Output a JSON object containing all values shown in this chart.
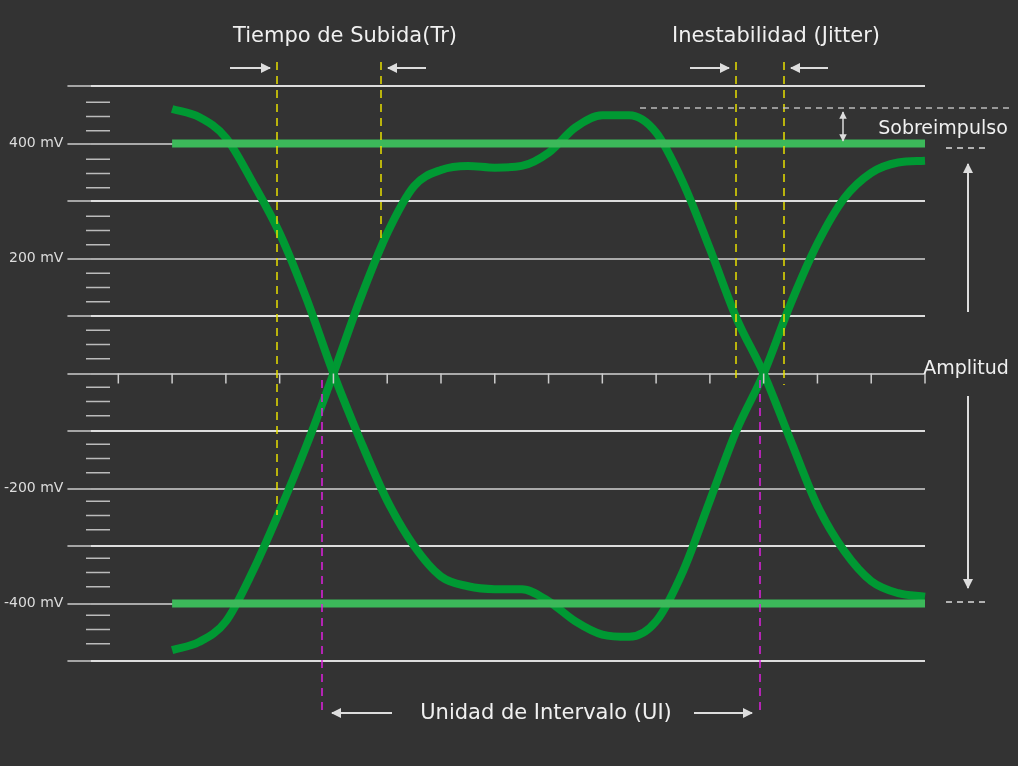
{
  "chart_data": {
    "type": "line",
    "categories": [
      null,
      null,
      null,
      null,
      null,
      null,
      null,
      null,
      null,
      null,
      null,
      null,
      null,
      null,
      null,
      null,
      null,
      null,
      null,
      null,
      null,
      null,
      null,
      null,
      null,
      null,
      null,
      null,
      null,
      null,
      null,
      null
    ],
    "series": [
      {
        "color": "#3cb95a",
        "values": [
          null,
          null,
          null,
          400,
          400,
          400,
          400,
          400,
          400,
          400,
          400,
          400,
          400,
          400,
          400,
          400,
          400,
          400,
          400,
          400,
          400,
          400,
          400,
          400,
          400,
          400,
          400,
          400,
          400,
          400,
          400,
          400
        ]
      },
      {
        "color": "#3cb95a",
        "values": [
          null,
          null,
          null,
          -400,
          -400,
          -400,
          -400,
          -400,
          -400,
          -400,
          -400,
          -400,
          -400,
          -400,
          -400,
          -400,
          -400,
          -400,
          -400,
          -400,
          -400,
          -400,
          -400,
          -400,
          -400,
          -400,
          -400,
          -400,
          -400,
          -400,
          -400,
          -400
        ]
      },
      {
        "color": "#009933",
        "values": [
          null,
          null,
          null,
          460,
          446,
          410,
          332,
          244,
          130,
          0,
          -116,
          -221,
          -300,
          -353,
          -370,
          -375,
          -375,
          -396,
          -431,
          -454,
          -458,
          -431,
          -344,
          -221,
          -98,
          0,
          121,
          226,
          305,
          349,
          367,
          370
        ]
      },
      {
        "color": "#009933",
        "values": [
          null,
          null,
          null,
          -481,
          -467,
          -431,
          -344,
          -239,
          -125,
          0,
          130,
          244,
          326,
          354,
          361,
          358,
          361,
          384,
          428,
          449,
          449,
          419,
          332,
          217,
          95,
          0,
          -116,
          -230,
          -309,
          -361,
          -382,
          -388
        ]
      }
    ],
    "ylim": [
      -500,
      500
    ],
    "yticks": [
      {
        "value": -500,
        "label": null
      },
      {
        "value": -400,
        "label": "-400 mV"
      },
      {
        "value": -300,
        "label": null
      },
      {
        "value": -200,
        "label": "-200 mV"
      },
      {
        "value": -100,
        "label": null
      },
      {
        "value": 0,
        "label": null
      },
      {
        "value": 100,
        "label": null
      },
      {
        "value": 200,
        "label": "200 mV"
      },
      {
        "value": 300,
        "label": null
      },
      {
        "value": 400,
        "label": "400 mV"
      },
      {
        "value": 500,
        "label": null
      }
    ],
    "tick_labels": "y",
    "grid": "y",
    "annotations": [
      "Tiempo de Subida(Tr)",
      "Inestabilidad (Jitter)",
      "Sobreimpulso",
      "Amplitud",
      "Unidad de Intervalo (UI)"
    ]
  }
}
